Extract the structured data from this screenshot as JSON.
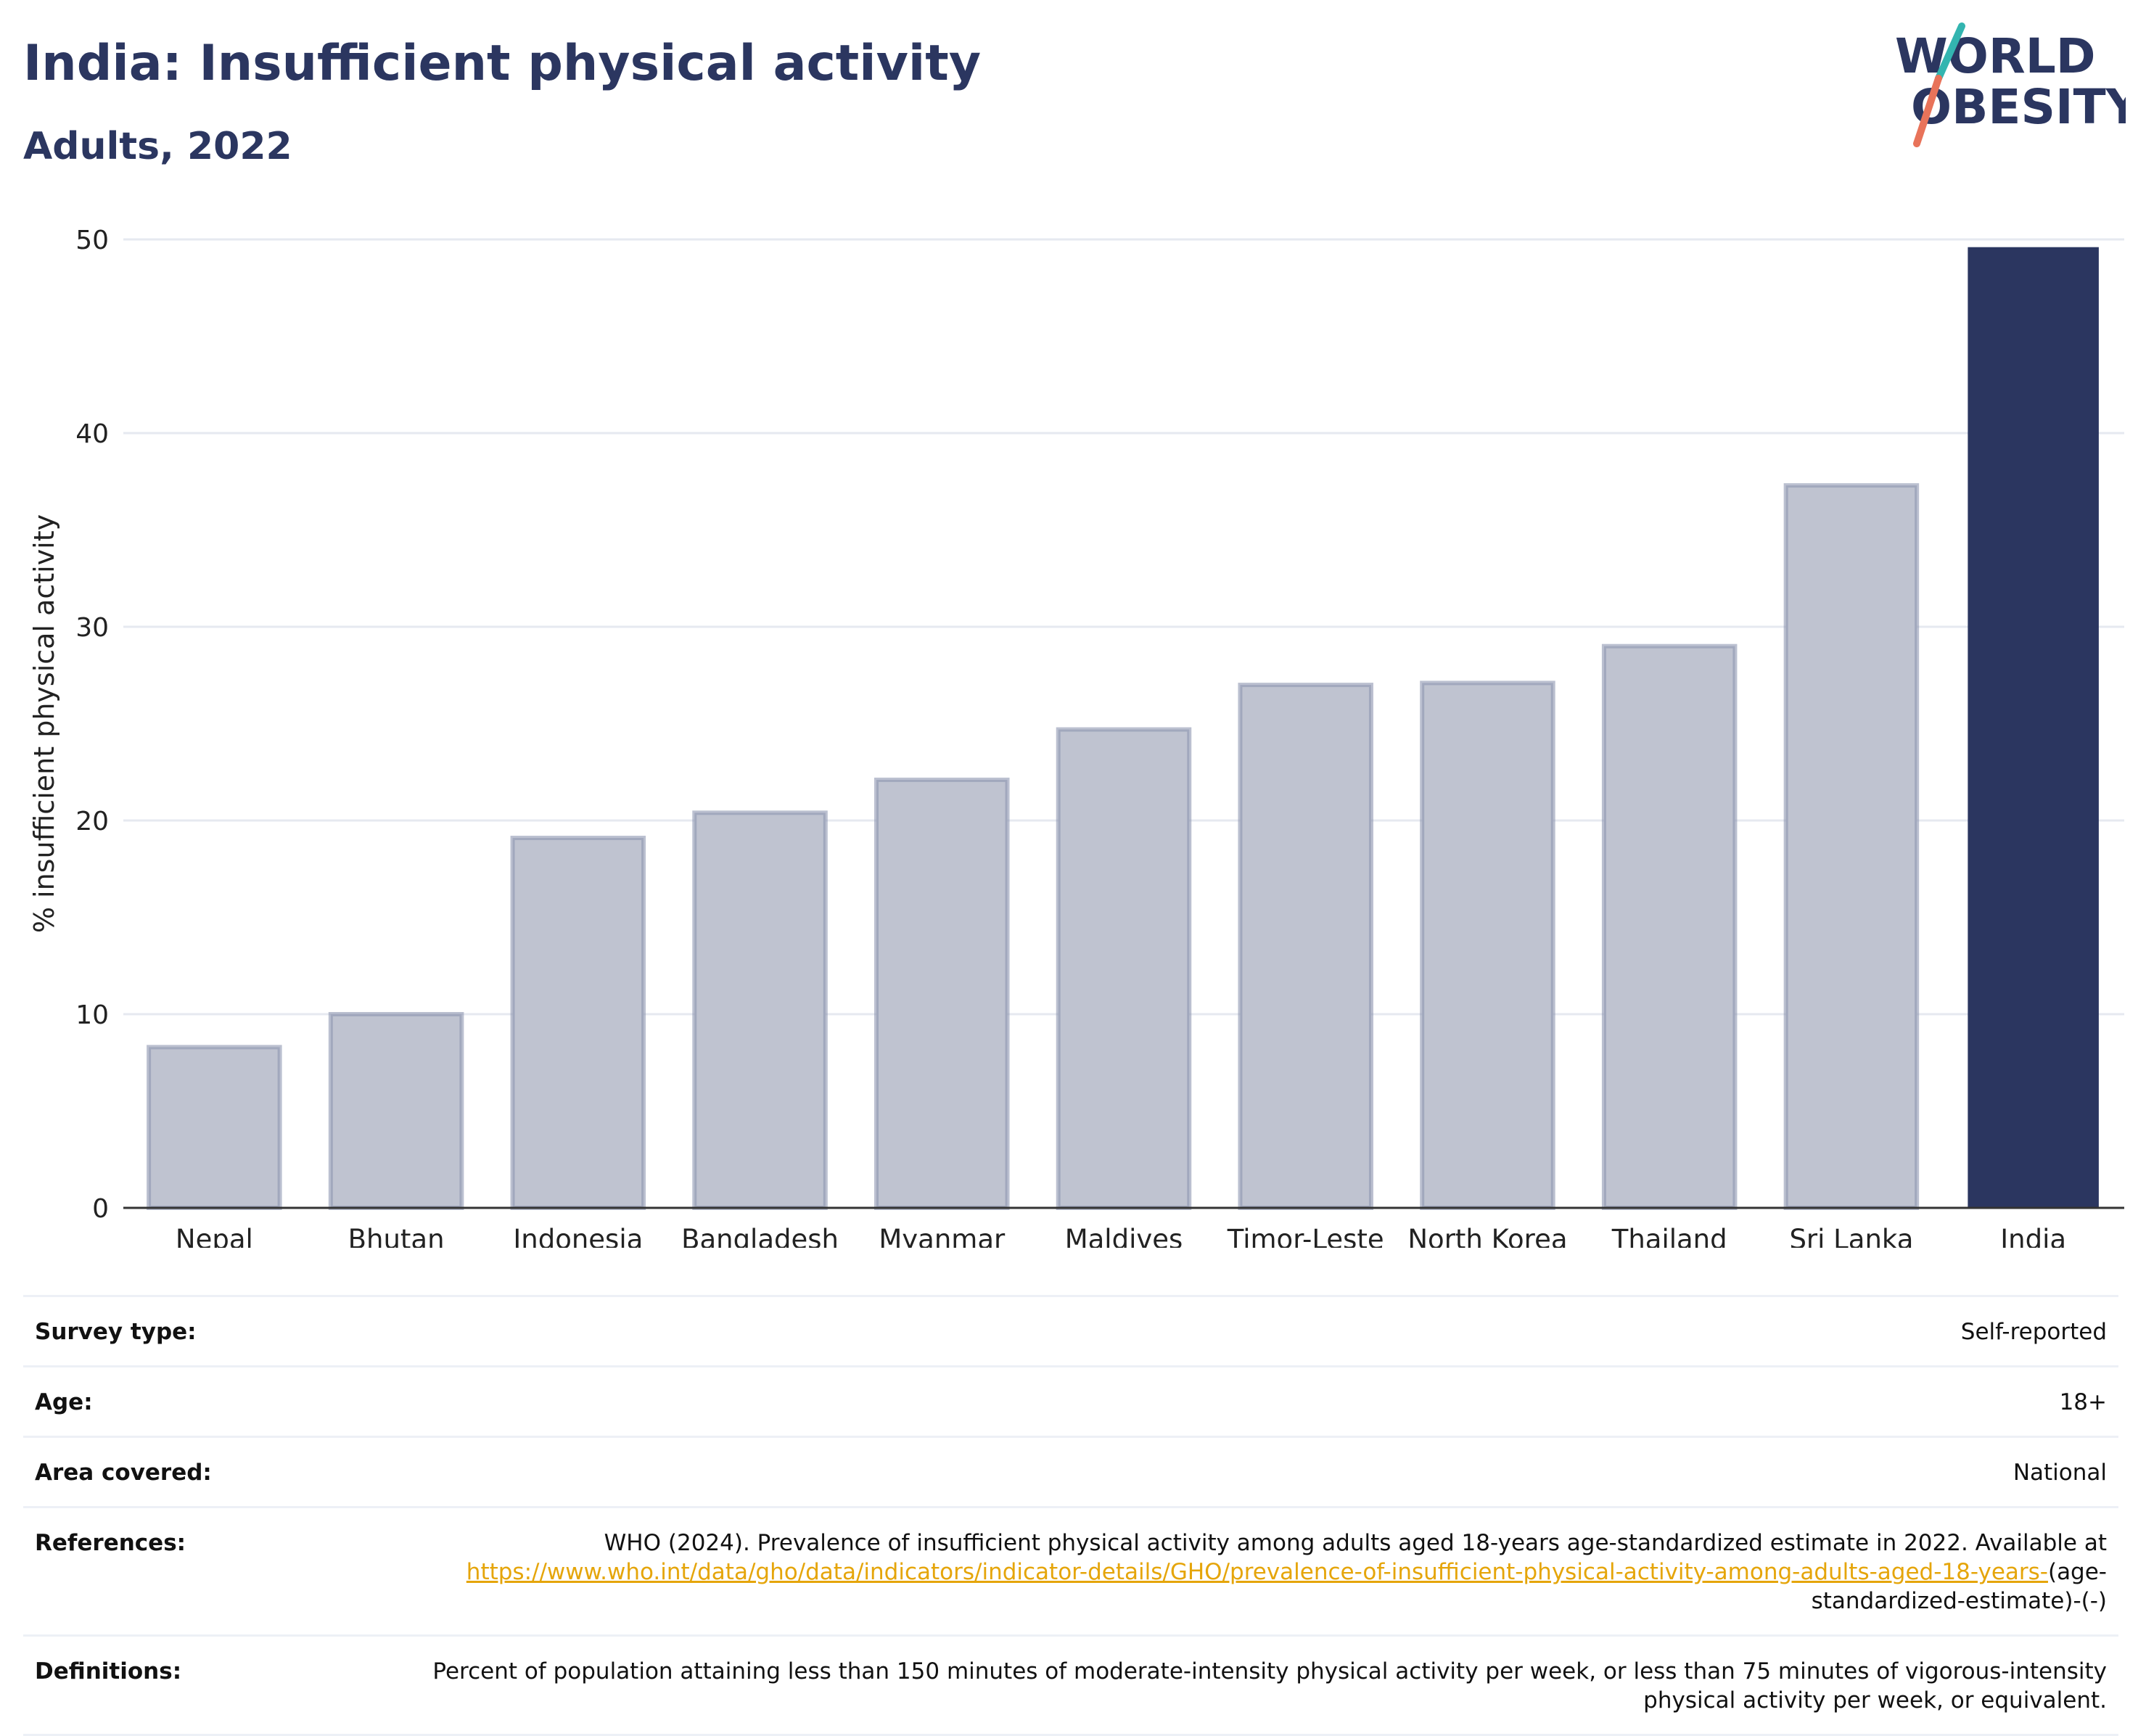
{
  "header": {
    "title": "India: Insufficient physical activity",
    "subtitle": "Adults, 2022"
  },
  "logo": {
    "line1": "WORLD",
    "line2": "OBESITY"
  },
  "colors": {
    "highlight_bar": "#2b3660",
    "other_bar_fill": "#bfc3d0",
    "other_bar_stroke": "#8e96b0",
    "title": "#2b3660",
    "link": "#e5a50a",
    "logo_teal": "#33b5b0",
    "logo_coral": "#e8735a"
  },
  "chart_data": {
    "type": "bar",
    "categories": [
      "Nepal",
      "Bhutan",
      "Indonesia",
      "Bangladesh",
      "Myanmar",
      "Maldives",
      "Timor-Leste",
      "North Korea",
      "Thailand",
      "Sri Lanka",
      "India"
    ],
    "values": [
      8.3,
      10.0,
      19.1,
      20.4,
      22.1,
      24.7,
      27.0,
      27.1,
      29.0,
      37.3,
      49.6
    ],
    "highlight": "India",
    "ylabel": "% insufficient physical activity",
    "ylim": [
      0,
      50
    ],
    "yticks": [
      0,
      10,
      20,
      30,
      40,
      50
    ],
    "grid": true
  },
  "info": {
    "survey_type": {
      "label": "Survey type:",
      "value": "Self-reported"
    },
    "age": {
      "label": "Age:",
      "value": "18+"
    },
    "area": {
      "label": "Area covered:",
      "value": "National"
    },
    "references": {
      "label": "References:",
      "text": "WHO (2024). Prevalence of insufficient physical activity among adults aged 18-years age-standardized estimate in 2022. Available at",
      "link": "https://www.who.int/data/gho/data/indicators/indicator-details/GHO/prevalence-of-insufficient-physical-activity-among-adults-aged-18-years-",
      "suffix": "(age-standardized-estimate)-(-)"
    },
    "definitions": {
      "label": "Definitions:",
      "value": "Percent of population attaining less than 150 minutes of moderate-intensity physical activity per week, or less than 75 minutes of vigorous-intensity physical activity per week, or equivalent."
    }
  }
}
